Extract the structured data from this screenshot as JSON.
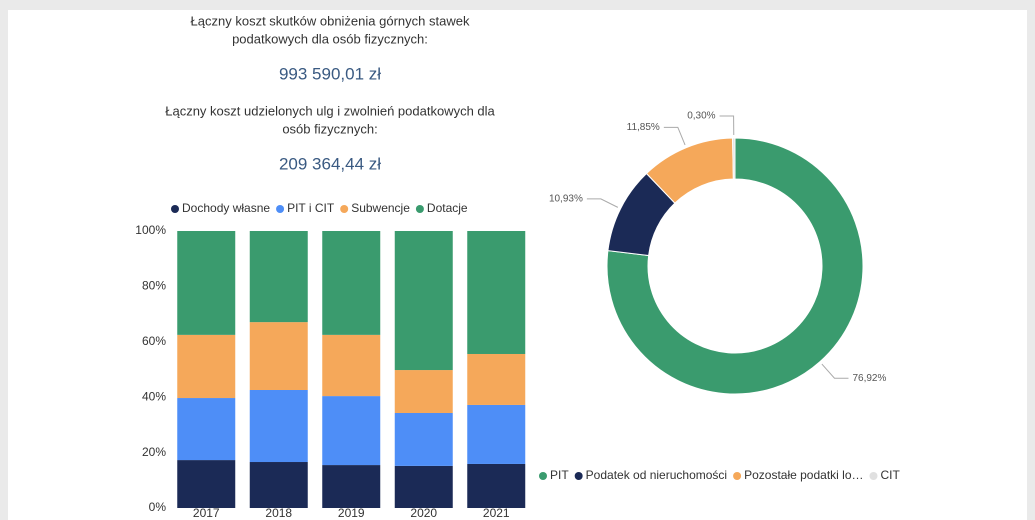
{
  "kpis": [
    {
      "label": [
        "Łączny koszt skutków obniżenia górnych stawek",
        "podatkowych dla osób fizycznych:"
      ],
      "value": "993 590,01 zł"
    },
    {
      "label": [
        "Łączny koszt udzielonych ulg i zwolnień podatkowych dla",
        "osób fizycznych:"
      ],
      "value": "209 364,44 zł"
    }
  ],
  "chart_data": [
    {
      "type": "stacked_bar",
      "categories": [
        "2017",
        "2018",
        "2019",
        "2020",
        "2021"
      ],
      "series": [
        {
          "name": "Dochody własne",
          "color": "#1b2a56",
          "values": [
            17.3,
            16.6,
            15.5,
            15.2,
            15.9
          ]
        },
        {
          "name": "PIT i CIT",
          "color": "#4e8ef7",
          "values": [
            22.4,
            26.0,
            24.9,
            19.1,
            21.3
          ]
        },
        {
          "name": "Subwencje",
          "color": "#f5a85a",
          "values": [
            22.8,
            24.5,
            22.1,
            15.5,
            18.4
          ]
        },
        {
          "name": "Dotacje",
          "color": "#3a9b6e",
          "values": [
            37.5,
            32.9,
            37.5,
            50.2,
            44.4
          ]
        }
      ],
      "ylim": [
        0,
        100
      ],
      "yticks": [
        {
          "value": 0,
          "label": "0%"
        },
        {
          "value": 20,
          "label": "20%"
        },
        {
          "value": 40,
          "label": "40%"
        },
        {
          "value": 60,
          "label": "60%"
        },
        {
          "value": 80,
          "label": "80%"
        },
        {
          "value": 100,
          "label": "100%"
        }
      ],
      "legend": "top"
    },
    {
      "type": "donut",
      "categories": [
        "PIT",
        "Podatek od nieruchomości",
        "Pozostałe podatki lo…",
        "CIT"
      ],
      "values": [
        76.92,
        10.93,
        11.85,
        0.3
      ],
      "value_labels": [
        "76,92%",
        "10,93%",
        "11,85%",
        "0,30%"
      ],
      "colors": [
        "#3a9b6e",
        "#1b2a56",
        "#f5a85a",
        "#e0e0e0"
      ],
      "legend": "bottom"
    }
  ]
}
